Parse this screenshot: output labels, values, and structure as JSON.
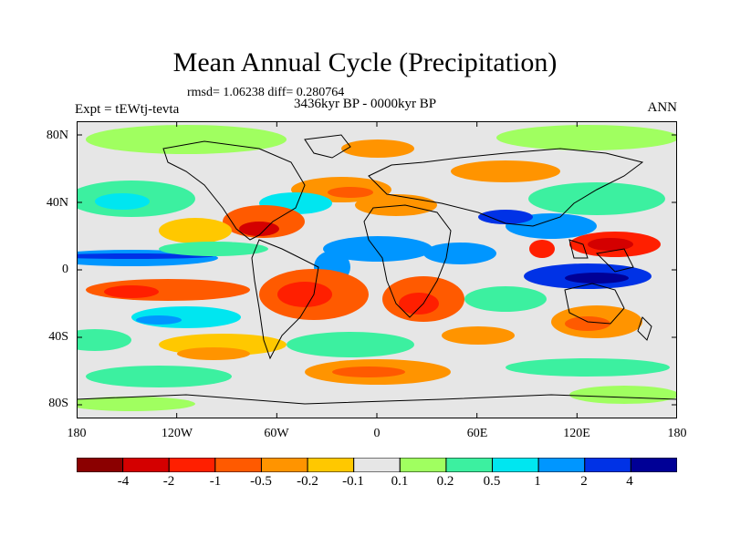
{
  "title": "Mean Annual Cycle (Precipitation)",
  "stats": "rmsd= 1.06238 diff= 0.280764",
  "period": "3436kyr BP - 0000kyr BP",
  "experiment": "Expt = tEWtj-tevta",
  "season": "ANN",
  "lat_labels": [
    "80N",
    "40N",
    "0",
    "40S",
    "80S"
  ],
  "lon_labels": [
    "180",
    "120W",
    "60W",
    "0",
    "60E",
    "120E",
    "180"
  ],
  "colorbar": {
    "labels": [
      "-4",
      "-2",
      "-1",
      "-0.5",
      "-0.2",
      "-0.1",
      "0.1",
      "0.2",
      "0.5",
      "1",
      "2",
      "4"
    ],
    "colors": [
      "#8b0000",
      "#d40000",
      "#ff1f00",
      "#ff5a00",
      "#ff9400",
      "#ffc800",
      "#e6e6e6",
      "#a0ff60",
      "#3cf0a0",
      "#00e6f0",
      "#0096ff",
      "#0032e6",
      "#000096"
    ]
  }
}
